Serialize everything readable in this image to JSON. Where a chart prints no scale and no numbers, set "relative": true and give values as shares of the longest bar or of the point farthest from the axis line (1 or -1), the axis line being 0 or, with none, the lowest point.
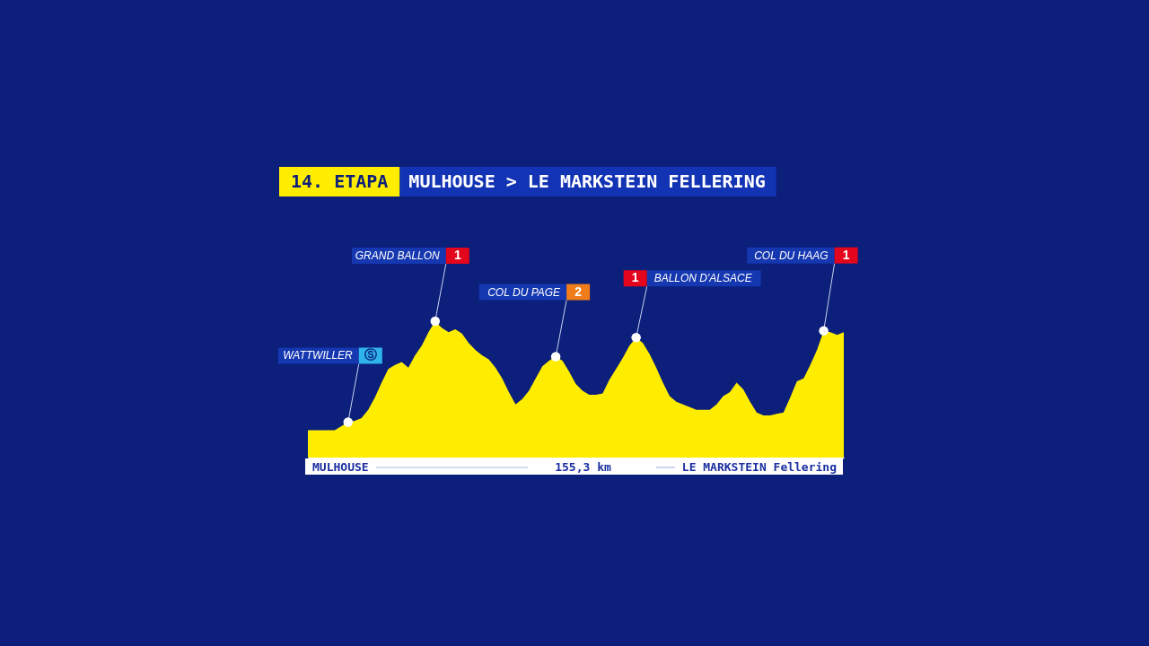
{
  "chart_data": {
    "type": "area",
    "title": "14. ETAPA",
    "subtitle": "MULHOUSE > LE MARKSTEIN FELLERING",
    "relative": true,
    "tick_labels": false,
    "color": "#ffed00",
    "categories": [
      null,
      null,
      null,
      null,
      null,
      null,
      null,
      null,
      null,
      null,
      null,
      null,
      null,
      null,
      null,
      null,
      null,
      null,
      null,
      null,
      null,
      null,
      null,
      null,
      null,
      null,
      null,
      null,
      null,
      null,
      null,
      null,
      null,
      null,
      null,
      null,
      null,
      null,
      null,
      null,
      null,
      null,
      null,
      null,
      null,
      null,
      null,
      null,
      null,
      null,
      null,
      null,
      null,
      null,
      null,
      null,
      null,
      null,
      null,
      null,
      null,
      null,
      null,
      null,
      null,
      null,
      null,
      null,
      null,
      null,
      null,
      null,
      null,
      null,
      null,
      null,
      null,
      null,
      null,
      null,
      null
    ],
    "values": [
      0.2,
      0.2,
      0.2,
      0.2,
      0.2,
      0.23,
      0.26,
      0.27,
      0.29,
      0.35,
      0.44,
      0.55,
      0.65,
      0.68,
      0.7,
      0.66,
      0.75,
      0.82,
      0.92,
      1.0,
      0.95,
      0.92,
      0.94,
      0.91,
      0.84,
      0.79,
      0.75,
      0.72,
      0.66,
      0.58,
      0.48,
      0.39,
      0.43,
      0.49,
      0.58,
      0.67,
      0.71,
      0.74,
      0.71,
      0.63,
      0.54,
      0.49,
      0.46,
      0.46,
      0.47,
      0.57,
      0.65,
      0.73,
      0.82,
      0.88,
      0.84,
      0.76,
      0.66,
      0.55,
      0.45,
      0.41,
      0.39,
      0.37,
      0.35,
      0.35,
      0.35,
      0.39,
      0.45,
      0.48,
      0.55,
      0.5,
      0.41,
      0.33,
      0.31,
      0.31,
      0.32,
      0.33,
      0.44,
      0.56,
      0.58,
      0.68,
      0.79,
      0.93,
      0.92,
      0.9,
      0.92
    ],
    "annotations": [
      "WATTWILLER",
      "Ⓢ",
      "GRAND BALLON",
      "1",
      "COL DU PAGE",
      "2",
      "BALLON D'ALSACE",
      "1",
      "COL DU HAAG",
      "1",
      "MULHOUSE",
      "155,3 km",
      "LE MARKSTEIN Fellering"
    ]
  }
}
